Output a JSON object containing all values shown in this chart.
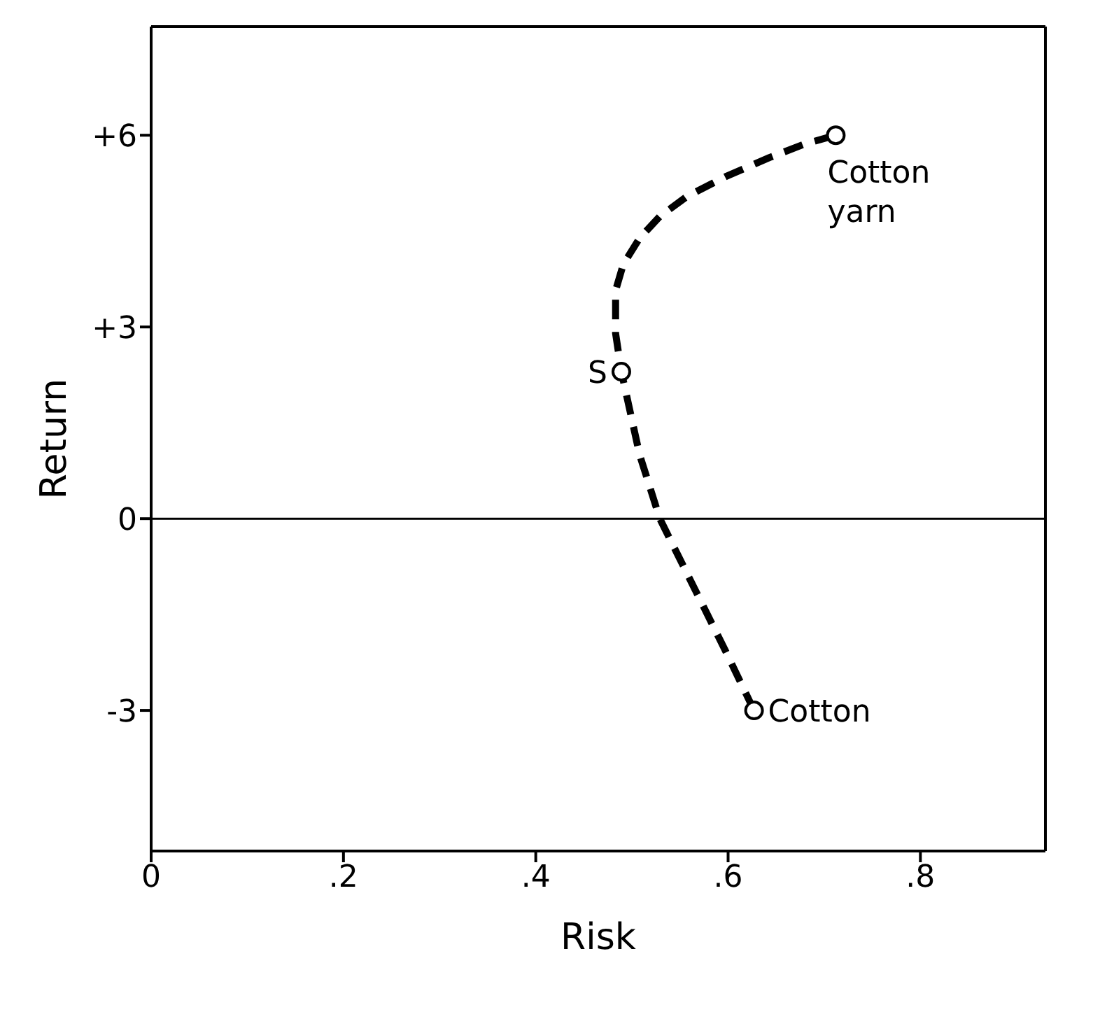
{
  "chart_data": {
    "type": "line",
    "xlabel": "Risk",
    "ylabel": "Return",
    "xlim": [
      0,
      0.93
    ],
    "xticks": [
      0,
      {
        "value": 0.2,
        "label": ".2"
      },
      {
        "value": 0.4,
        "label": ".4"
      },
      {
        "value": 0.6,
        "label": ".6"
      },
      {
        "value": 0.8,
        "label": ".8"
      }
    ],
    "ylim": [
      -5.2,
      7.7
    ],
    "yticks": [
      {
        "value": -3,
        "label": "-3"
      },
      0,
      {
        "value": 3,
        "label": "+3"
      },
      {
        "value": 6,
        "label": "+6"
      }
    ],
    "grid": false,
    "legend": false,
    "series": [
      {
        "color": "#000000",
        "line_style": "dashed",
        "marker": "none",
        "x": [
          0.627,
          0.597,
          0.566,
          0.529,
          0.508,
          0.489,
          0.483,
          0.483,
          0.491,
          0.508,
          0.529,
          0.557,
          0.597,
          0.643,
          0.679,
          0.712
        ],
        "values": [
          -3.0,
          -2.06,
          -1.12,
          0,
          1.0,
          2.3,
          2.9,
          3.57,
          3.98,
          4.39,
          4.73,
          5.04,
          5.35,
          5.65,
          5.86,
          6.0
        ]
      },
      {
        "type": "scatter",
        "color": "#000000",
        "marker": "circle",
        "x": [
          0.627,
          0.489,
          0.712
        ],
        "values": [
          -3.0,
          2.3,
          6.0
        ]
      }
    ],
    "ref_lines": [
      {
        "axis": "y",
        "value": 0
      }
    ],
    "annotations": [
      {
        "text": "Cotton",
        "x": 0.627,
        "y": -3.0
      },
      {
        "text": "S",
        "x": 0.489,
        "y": 2.3
      },
      {
        "text": "Cotton\nyarn",
        "x": 0.712,
        "y": 6.0
      }
    ]
  }
}
